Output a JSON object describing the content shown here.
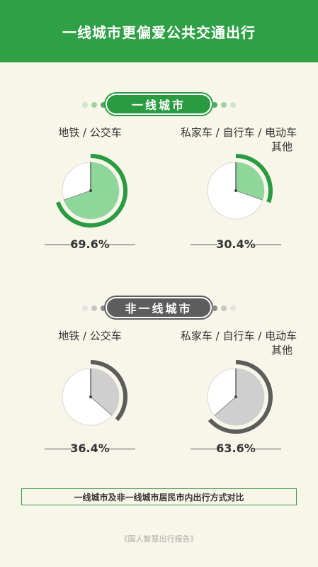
{
  "header": {
    "title": "一线城市更偏爱公共交通出行"
  },
  "sections": [
    {
      "banner": "一线城市",
      "theme": {
        "fill": "#8fd69a",
        "ring": "#2a9b40",
        "bg": "#ffffff"
      },
      "charts": [
        {
          "label_lines": [
            "地铁 / 公交车"
          ],
          "value_label": "69.6%"
        },
        {
          "label_lines": [
            "私家车 / 自行车 / 电动车",
            "其他"
          ],
          "value_label": "30.4%"
        }
      ]
    },
    {
      "banner": "非一线城市",
      "theme": {
        "fill": "#cfcfcf",
        "ring": "#5d5d5d",
        "bg": "#ffffff"
      },
      "charts": [
        {
          "label_lines": [
            "地铁 / 公交车"
          ],
          "value_label": "36.4%"
        },
        {
          "label_lines": [
            "私家车 / 自行车 / 电动车",
            "其他"
          ],
          "value_label": "63.6%"
        }
      ]
    }
  ],
  "chart_data": [
    {
      "type": "pie",
      "title": "一线城市",
      "categories": [
        "地铁 / 公交车",
        "私家车 / 自行车 / 电动车 其他"
      ],
      "values": [
        69.6,
        30.4
      ]
    },
    {
      "type": "pie",
      "title": "非一线城市",
      "categories": [
        "地铁 / 公交车",
        "私家车 / 自行车 / 电动车 其他"
      ],
      "values": [
        36.4,
        63.6
      ]
    }
  ],
  "caption": "一线城市及非一线城市居民市内出行方式对比",
  "source": "《国人智慧出行报告》"
}
